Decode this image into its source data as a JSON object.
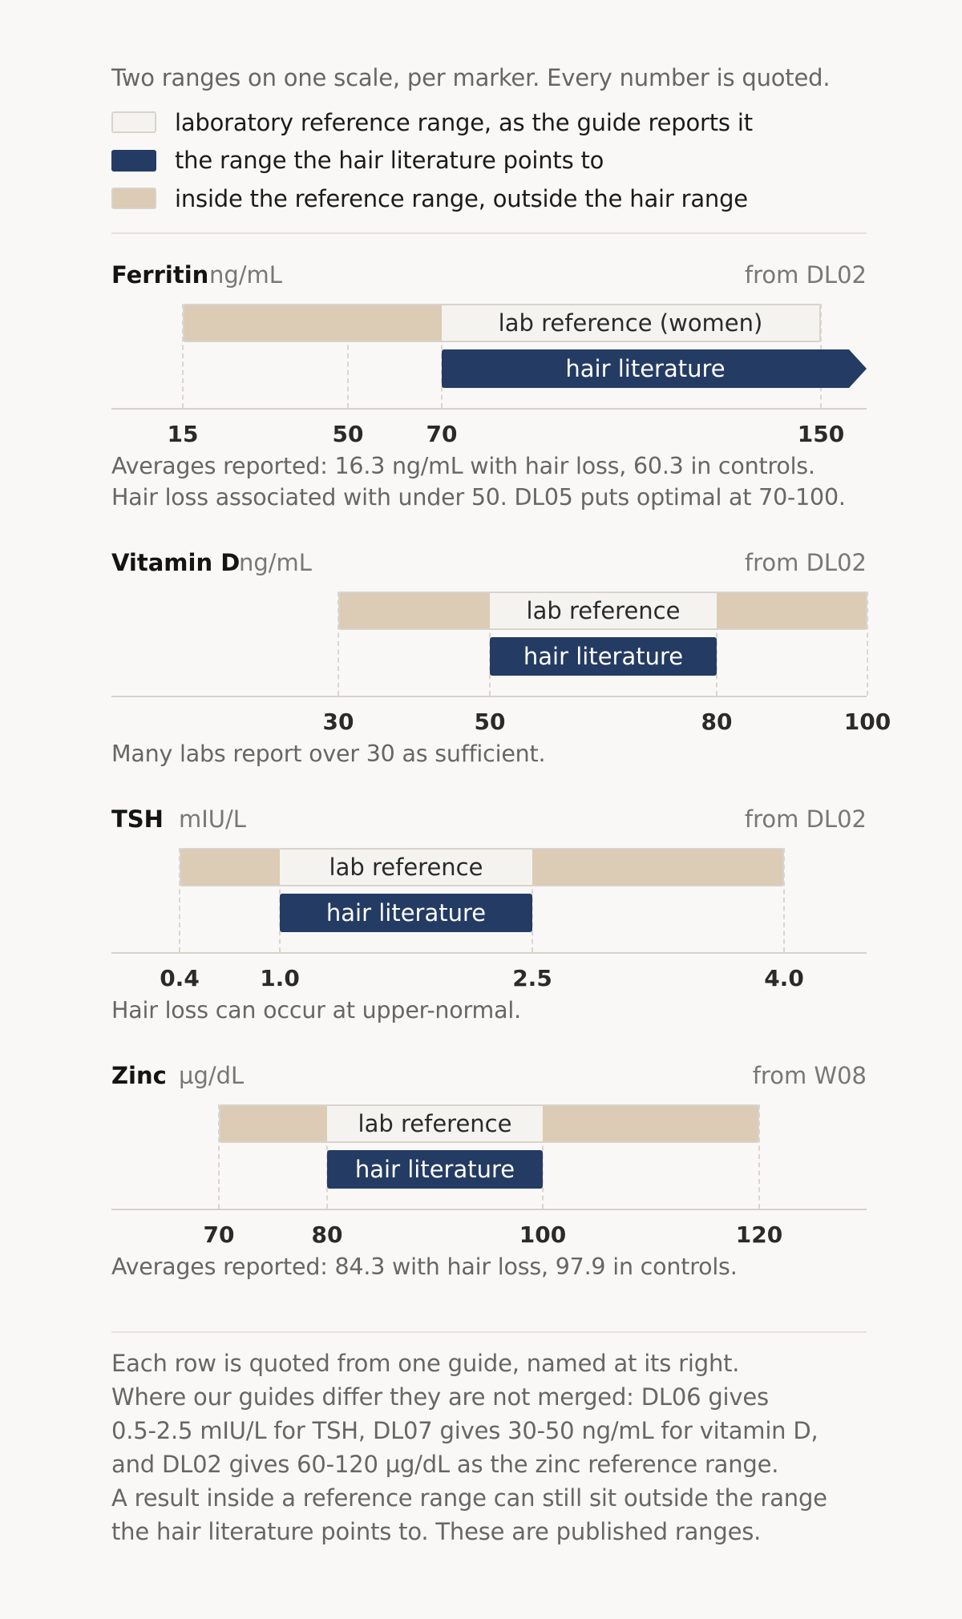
{
  "intro": "Two ranges on one scale, per marker. Every number is quoted.",
  "legend": [
    {
      "label": "laboratory reference range, as the guide reports it",
      "kind": "lab"
    },
    {
      "label": "the range the hair literature points to",
      "kind": "hair"
    },
    {
      "label": "inside the reference range, outside the hair range",
      "kind": "gap"
    }
  ],
  "colors": {
    "hair": "#243b64",
    "lab": "#f4f3f0",
    "gap": "#dccbb5",
    "background": "#f9f8f6"
  },
  "chart_data": [
    {
      "type": "range",
      "name": "Ferritin",
      "unit": "ng/mL",
      "source": "from DL02",
      "scale": "log",
      "xlim": [
        15,
        150
      ],
      "ticks": [
        15,
        50,
        70,
        150
      ],
      "tick_labels": [
        "15",
        "50",
        "70",
        "150"
      ],
      "reference_range": [
        15,
        150
      ],
      "hair_range": [
        70,
        150
      ],
      "hair_open_ended": true,
      "lab_label": "lab reference (women)",
      "hair_label": "hair literature",
      "notes": [
        "Averages reported: 16.3 ng/mL with hair loss, 60.3 in controls.",
        "Hair loss associated with under 50. DL05 puts optimal at 70-100."
      ]
    },
    {
      "type": "range",
      "name": "Vitamin D",
      "unit": "ng/mL",
      "source": "from DL02",
      "scale": "linear",
      "xlim": [
        0,
        100
      ],
      "ticks": [
        30,
        50,
        80,
        100
      ],
      "tick_labels": [
        "30",
        "50",
        "80",
        "100"
      ],
      "reference_range": [
        30,
        100
      ],
      "hair_range": [
        50,
        80
      ],
      "hair_open_ended": false,
      "lab_label": "lab reference",
      "hair_label": "hair literature",
      "notes": [
        "Many labs report over 30 as sufficient."
      ]
    },
    {
      "type": "range",
      "name": "TSH",
      "unit": "mIU/L",
      "source": "from DL02",
      "scale": "linear",
      "xlim": [
        0,
        4.6
      ],
      "ticks": [
        0.4,
        1.0,
        2.5,
        4.0
      ],
      "tick_labels": [
        "0.4",
        "1.0",
        "2.5",
        "4.0"
      ],
      "reference_range": [
        0.4,
        4.0
      ],
      "hair_range": [
        1.0,
        2.5
      ],
      "hair_open_ended": false,
      "lab_label": "lab reference",
      "hair_label": "hair literature",
      "notes": [
        "Hair loss can occur at upper-normal."
      ]
    },
    {
      "type": "range",
      "name": "Zinc",
      "unit": "µg/dL",
      "source": "from W08",
      "scale": "linear",
      "xlim": [
        55,
        125
      ],
      "ticks": [
        70,
        80,
        100,
        120
      ],
      "tick_labels": [
        "70",
        "80",
        "100",
        "120"
      ],
      "reference_range": [
        70,
        120
      ],
      "hair_range": [
        80,
        100
      ],
      "hair_open_ended": false,
      "lab_label": "lab reference",
      "hair_label": "hair literature",
      "notes": [
        "Averages reported: 84.3 with hair loss, 97.9 in controls."
      ]
    }
  ],
  "footer": [
    "Each row is quoted from one guide, named at its right.",
    "Where our guides differ they are not merged: DL06 gives",
    "0.5-2.5 mIU/L for TSH, DL07 gives 30-50 ng/mL for vitamin D,",
    "and DL02 gives 60-120 µg/dL as the zinc reference range.",
    "A result inside a reference range can still sit outside the range",
    "the hair literature points to. These are published ranges."
  ]
}
